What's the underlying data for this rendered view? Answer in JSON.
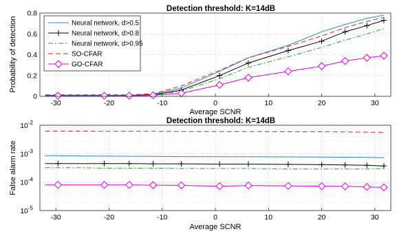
{
  "chart_data": [
    {
      "type": "line",
      "title": "Detection threshold: K=14dB",
      "xlabel": "Average SCNR",
      "ylabel": "Probability of detection",
      "xlim": [
        -33,
        33
      ],
      "ylim": [
        0,
        0.8
      ],
      "xticks": [
        "-30",
        "-20",
        "-10",
        "0",
        "10",
        "20",
        "30"
      ],
      "yticks": [
        "0",
        "0.2",
        "0.4",
        "0.6",
        "0.8"
      ],
      "grid": true,
      "legend_position": "top-left",
      "legend": [
        "Neural network, d>0.5",
        "Neural network, d>0.8",
        "Neural network, d>0.95",
        "SO-CFAR",
        "GO-CFAR"
      ],
      "x": [
        -32,
        -29.6,
        -25,
        -20.9,
        -16.2,
        -11.7,
        -6.4,
        0.8,
        6.2,
        13.7,
        20,
        24.4,
        28.5,
        31.7
      ],
      "series": [
        {
          "name": "Neural network, d>0.5",
          "color": "#2e86c1",
          "style": "solid",
          "marker": "none",
          "values": [
            0.01,
            0.01,
            0.01,
            0.01,
            0.01,
            0.02,
            0.08,
            0.24,
            0.37,
            0.49,
            0.62,
            0.69,
            0.75,
            0.78
          ]
        },
        {
          "name": "Neural network, d>0.8",
          "color": "#000000",
          "style": "solid",
          "marker": "plus",
          "values": [
            0.005,
            0.005,
            0.005,
            0.005,
            0.005,
            0.015,
            0.06,
            0.2,
            0.32,
            0.44,
            0.53,
            0.62,
            0.68,
            0.73
          ]
        },
        {
          "name": "Neural network, d>0.95",
          "color": "#2ca02c",
          "style": "dashdot",
          "marker": "none",
          "values": [
            0.005,
            0.005,
            0.005,
            0.005,
            0.005,
            0.01,
            0.05,
            0.17,
            0.28,
            0.38,
            0.47,
            0.54,
            0.6,
            0.65
          ]
        },
        {
          "name": "SO-CFAR",
          "color": "#d62728",
          "style": "dashed",
          "marker": "none",
          "values": [
            0.015,
            0.015,
            0.015,
            0.015,
            0.015,
            0.025,
            0.1,
            0.25,
            0.37,
            0.48,
            0.58,
            0.66,
            0.72,
            0.76
          ]
        },
        {
          "name": "GO-CFAR",
          "color": "#e000e0",
          "style": "solid",
          "marker": "diamond",
          "values": [
            0.005,
            0.005,
            0.005,
            0.005,
            0.005,
            0.01,
            0.03,
            0.11,
            0.18,
            0.24,
            0.29,
            0.34,
            0.37,
            0.39
          ]
        }
      ]
    },
    {
      "type": "line",
      "title": "Detection threshold: K=14dB",
      "xlabel": "Average SCNR",
      "ylabel": "False alarm rate",
      "xlim": [
        -33,
        33
      ],
      "ylim": [
        1e-05,
        0.01
      ],
      "yscale": "log",
      "xticks": [
        "-30",
        "-20",
        "-10",
        "0",
        "10",
        "20",
        "30"
      ],
      "yticks": [
        {
          "base": "10",
          "exp": "-5"
        },
        {
          "base": "10",
          "exp": "-4"
        },
        {
          "base": "10",
          "exp": "-3"
        },
        {
          "base": "10",
          "exp": "-2"
        }
      ],
      "grid": true,
      "x": [
        -32,
        -29.6,
        -25,
        -20.9,
        -16.2,
        -11.7,
        -6.4,
        0.8,
        6.2,
        13.7,
        20,
        24.4,
        28.5,
        31.7
      ],
      "series": [
        {
          "name": "Neural network, d>0.5",
          "color": "#2e86c1",
          "style": "solid",
          "marker": "none",
          "values": [
            0.00085,
            0.00085,
            0.00083,
            0.00082,
            0.00081,
            0.0008,
            0.00079,
            0.00078,
            0.00078,
            0.00077,
            0.00076,
            0.00075,
            0.00074,
            0.00072
          ]
        },
        {
          "name": "Neural network, d>0.8",
          "color": "#000000",
          "style": "solid",
          "marker": "plus",
          "values": [
            0.00045,
            0.00045,
            0.00045,
            0.00045,
            0.00045,
            0.00044,
            0.00044,
            0.00043,
            0.00043,
            0.00042,
            0.00041,
            0.0004,
            0.00039,
            0.00037
          ]
        },
        {
          "name": "Neural network, d>0.95",
          "color": "#2ca02c",
          "style": "dashdot",
          "marker": "none",
          "values": [
            0.00032,
            0.00032,
            0.00032,
            0.00031,
            0.00031,
            0.00031,
            0.0003,
            0.0003,
            0.0003,
            0.00029,
            0.00029,
            0.00029,
            0.00029,
            0.0003
          ]
        },
        {
          "name": "SO-CFAR",
          "color": "#d62728",
          "style": "dashed",
          "marker": "none",
          "values": [
            0.0062,
            0.0062,
            0.0062,
            0.0061,
            0.0061,
            0.0061,
            0.006,
            0.006,
            0.006,
            0.0059,
            0.0059,
            0.0058,
            0.0057,
            0.0056
          ]
        },
        {
          "name": "GO-CFAR",
          "color": "#e000e0",
          "style": "solid",
          "marker": "diamond",
          "values": [
            8e-05,
            8e-05,
            8e-05,
            8e-05,
            8e-05,
            7.8e-05,
            7.7e-05,
            7.2e-05,
            7.6e-05,
            7.4e-05,
            7.2e-05,
            7.1e-05,
            6.8e-05,
            6.5e-05
          ]
        }
      ]
    }
  ]
}
